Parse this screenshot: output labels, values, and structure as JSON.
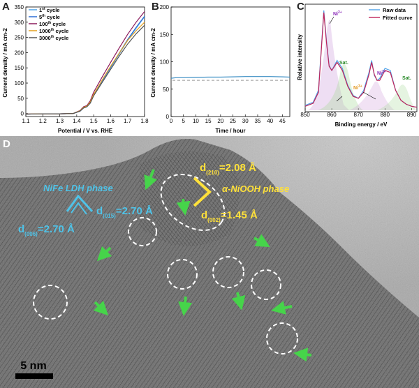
{
  "figure": {
    "panel_labels": [
      "A",
      "B",
      "C",
      "D"
    ],
    "tem": {
      "scale_bar": "5 nm",
      "nife_phase": "NiFe LDH phase",
      "nife_d1_main": "d",
      "nife_d1_sub": "(006)",
      "nife_d1_val": "=2.70 Å",
      "nife_d2_main": "d",
      "nife_d2_sub": "(015)",
      "nife_d2_val": "=2.70 Å",
      "niooh_phase": "α-NiOOH phase",
      "niooh_d1_main": "d",
      "niooh_d1_sub": "(210)",
      "niooh_d1_val": "=2.08 Å",
      "niooh_d2_main": "d",
      "niooh_d2_sub": "(002)",
      "niooh_d2_val": "=1.45 Å"
    }
  },
  "colors": {
    "tem_text_blue": "#4fc3e8",
    "tem_text_yellow": "#ffe13a",
    "tem_arrow_green": "#46d44a",
    "tem_circle": "#ffffff"
  },
  "chart_data": [
    {
      "type": "line",
      "panel": "A",
      "xlabel": "Potential / V vs. RHE",
      "ylabel": "Current density / mA cm-2",
      "xlim": [
        1.1,
        1.8
      ],
      "ylim": [
        -10,
        350
      ],
      "xticks": [
        "1.1",
        "1.2",
        "1.3",
        "1.4",
        "1.5",
        "1.6",
        "1.7",
        "1.8"
      ],
      "yticks": [
        "0",
        "50",
        "100",
        "150",
        "200",
        "250",
        "300",
        "350"
      ],
      "x": [
        1.1,
        1.2,
        1.3,
        1.38,
        1.42,
        1.44,
        1.46,
        1.48,
        1.5,
        1.55,
        1.6,
        1.65,
        1.7,
        1.75,
        1.8
      ],
      "series": [
        {
          "name": "1st cycle",
          "label_main": "1",
          "label_sup": "st",
          "label_rest": " cycle",
          "color": "#4fa3e8",
          "values": [
            -2,
            -1,
            -1,
            0,
            8,
            18,
            22,
            35,
            60,
            105,
            150,
            195,
            240,
            280,
            318
          ]
        },
        {
          "name": "5th cycle",
          "label_main": "5",
          "label_sup": "th",
          "label_rest": " cycle",
          "color": "#2e6fd6",
          "values": [
            -2,
            -1,
            -1,
            0,
            8,
            19,
            23,
            36,
            62,
            108,
            153,
            198,
            243,
            283,
            320
          ]
        },
        {
          "name": "100th cycle",
          "label_main": "100",
          "label_sup": "th",
          "label_rest": " cycle",
          "color": "#8b1a5c",
          "values": [
            -2,
            -1,
            -1,
            0,
            10,
            22,
            26,
            42,
            70,
            120,
            168,
            215,
            260,
            300,
            335
          ]
        },
        {
          "name": "1000th cycle",
          "label_main": "1000",
          "label_sup": "th",
          "label_rest": " cycle",
          "color": "#e3a020",
          "values": [
            -2,
            -1,
            -1,
            0,
            9,
            20,
            24,
            38,
            63,
            110,
            155,
            198,
            240,
            272,
            300
          ]
        },
        {
          "name": "3000th cycle",
          "label_main": "3000",
          "label_sup": "th",
          "label_rest": " cycle",
          "color": "#555555",
          "values": [
            -2,
            -1,
            -1,
            0,
            8,
            18,
            22,
            34,
            58,
            102,
            145,
            188,
            228,
            262,
            290
          ]
        }
      ]
    },
    {
      "type": "line",
      "panel": "B",
      "xlabel": "Time / hour",
      "ylabel": "Current density / mA cm-2",
      "xlim": [
        0,
        48
      ],
      "ylim": [
        0,
        200
      ],
      "xticks": [
        "0",
        "5",
        "10",
        "15",
        "20",
        "25",
        "30",
        "35",
        "40",
        "45"
      ],
      "yticks": [
        "0",
        "50",
        "100",
        "150",
        "200"
      ],
      "x": [
        0,
        2,
        5,
        10,
        15,
        20,
        25,
        30,
        35,
        40,
        45,
        48
      ],
      "series": [
        {
          "name": "Current density",
          "color": "#3d8fc4",
          "values": [
            70,
            71,
            71,
            71.5,
            72,
            72,
            72.5,
            73,
            73,
            73,
            72.5,
            72
          ]
        }
      ],
      "reference_line": {
        "value": 70,
        "style": "dashed"
      }
    },
    {
      "type": "line",
      "panel": "C",
      "xlabel": "Binding energy / eV",
      "ylabel": "Relative intensity",
      "xlim": [
        850,
        892
      ],
      "xticks": [
        "850",
        "860",
        "870",
        "880",
        "890"
      ],
      "x": [
        850,
        853,
        855,
        856,
        857,
        858,
        859,
        860,
        862,
        864,
        866,
        868,
        870,
        872,
        874,
        875,
        876,
        877,
        878,
        880,
        882,
        884,
        886,
        888,
        890,
        892
      ],
      "series": [
        {
          "name": "Raw data",
          "color": "#4fa3e8",
          "values": [
            0.05,
            0.08,
            0.2,
            0.6,
            1.0,
            0.7,
            0.45,
            0.4,
            0.5,
            0.42,
            0.25,
            0.15,
            0.12,
            0.2,
            0.38,
            0.5,
            0.35,
            0.3,
            0.32,
            0.42,
            0.4,
            0.2,
            0.1,
            0.06,
            0.04,
            0.03
          ]
        },
        {
          "name": "Fitted curve",
          "color": "#c0245a",
          "values": [
            0.04,
            0.07,
            0.18,
            0.58,
            0.98,
            0.68,
            0.44,
            0.4,
            0.48,
            0.4,
            0.24,
            0.14,
            0.12,
            0.18,
            0.36,
            0.48,
            0.36,
            0.3,
            0.3,
            0.4,
            0.38,
            0.2,
            0.1,
            0.06,
            0.04,
            0.03
          ]
        }
      ],
      "annotations": [
        {
          "text": "Ni",
          "sup": "2+",
          "color": "#8a2ab8"
        },
        {
          "text": "Sat.",
          "sup": "",
          "color": "#2a8a2a"
        },
        {
          "text": "Ni",
          "sup": "3+",
          "color": "#e39820"
        },
        {
          "text": "Ni",
          "sup": "2+",
          "color": "#8a2ab8"
        },
        {
          "text": "Sat.",
          "sup": "",
          "color": "#2a8a2a"
        }
      ]
    }
  ]
}
